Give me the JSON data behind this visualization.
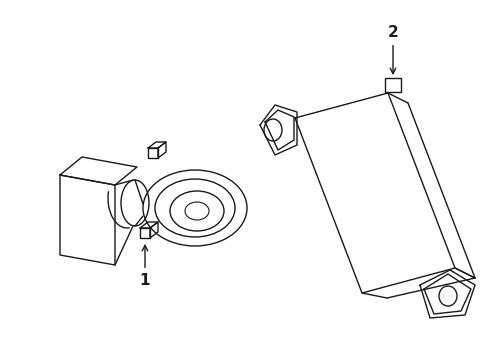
{
  "background_color": "#ffffff",
  "line_color": "#1a1a1a",
  "line_width": 1.0,
  "fig_width": 4.9,
  "fig_height": 3.6,
  "dpi": 100,
  "label1": "1",
  "label2": "2"
}
